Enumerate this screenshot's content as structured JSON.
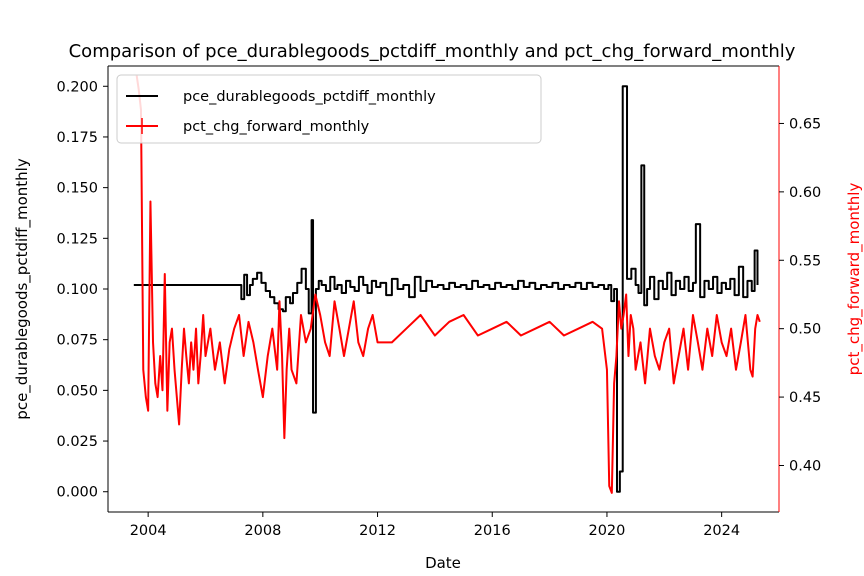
{
  "chart_data": {
    "type": "line",
    "title": "Comparison of pce_durablegoods_pctdiff_monthly and pct_chg_forward_monthly",
    "xlabel": "Date",
    "ylabel_left": "pce_durablegoods_pctdiff_monthly",
    "ylabel_right": "pct_chg_forward_monthly",
    "xlim": [
      2002.6,
      2026.0
    ],
    "ylim_left": [
      -0.01,
      0.21
    ],
    "ylim_right": [
      0.366,
      0.692
    ],
    "x_ticks": [
      2004,
      2008,
      2012,
      2016,
      2020,
      2024
    ],
    "x_tick_labels": [
      "2004",
      "2008",
      "2012",
      "2016",
      "2020",
      "2024"
    ],
    "y_left_ticks": [
      0.0,
      0.025,
      0.05,
      0.075,
      0.1,
      0.125,
      0.15,
      0.175,
      0.2
    ],
    "y_left_tick_labels": [
      "0.000",
      "0.025",
      "0.050",
      "0.075",
      "0.100",
      "0.125",
      "0.150",
      "0.175",
      "0.200"
    ],
    "y_right_ticks": [
      0.4,
      0.45,
      0.5,
      0.55,
      0.6,
      0.65
    ],
    "y_right_tick_labels": [
      "0.40",
      "0.45",
      "0.50",
      "0.55",
      "0.60",
      "0.65"
    ],
    "grid": false,
    "legend_position": "top-left",
    "series": [
      {
        "name": "pce_durablegoods_pctdiff_monthly",
        "axis": "left",
        "color": "#000000",
        "step": true,
        "x": [
          2003.5,
          2007.2,
          2007.25,
          2007.35,
          2007.45,
          2007.55,
          2007.65,
          2007.8,
          2007.95,
          2008.1,
          2008.25,
          2008.4,
          2008.55,
          2008.7,
          2008.8,
          2008.95,
          2009.05,
          2009.2,
          2009.35,
          2009.5,
          2009.6,
          2009.7,
          2009.75,
          2009.85,
          2009.95,
          2010.05,
          2010.2,
          2010.35,
          2010.5,
          2010.6,
          2010.75,
          2010.9,
          2011.05,
          2011.2,
          2011.35,
          2011.5,
          2011.65,
          2011.8,
          2011.95,
          2012.1,
          2012.3,
          2012.5,
          2012.7,
          2012.9,
          2013.1,
          2013.3,
          2013.5,
          2013.7,
          2013.9,
          2014.1,
          2014.3,
          2014.5,
          2014.7,
          2014.9,
          2015.1,
          2015.3,
          2015.5,
          2015.7,
          2015.9,
          2016.1,
          2016.3,
          2016.5,
          2016.7,
          2016.9,
          2017.1,
          2017.3,
          2017.5,
          2017.7,
          2017.9,
          2018.1,
          2018.3,
          2018.5,
          2018.7,
          2018.9,
          2019.1,
          2019.3,
          2019.5,
          2019.7,
          2019.9,
          2020.05,
          2020.15,
          2020.25,
          2020.35,
          2020.45,
          2020.55,
          2020.7,
          2020.85,
          2021.0,
          2021.1,
          2021.2,
          2021.3,
          2021.4,
          2021.5,
          2021.65,
          2021.8,
          2021.95,
          2022.1,
          2022.25,
          2022.4,
          2022.55,
          2022.7,
          2022.85,
          2023.0,
          2023.1,
          2023.25,
          2023.4,
          2023.55,
          2023.7,
          2023.85,
          2024.0,
          2024.15,
          2024.3,
          2024.45,
          2024.6,
          2024.75,
          2024.9,
          2025.05,
          2025.15,
          2025.25
        ],
        "y": [
          0.102,
          0.102,
          0.095,
          0.107,
          0.097,
          0.102,
          0.105,
          0.108,
          0.103,
          0.099,
          0.096,
          0.093,
          0.09,
          0.089,
          0.096,
          0.093,
          0.098,
          0.103,
          0.11,
          0.1,
          0.088,
          0.134,
          0.039,
          0.1,
          0.104,
          0.102,
          0.099,
          0.106,
          0.1,
          0.102,
          0.098,
          0.104,
          0.101,
          0.099,
          0.106,
          0.102,
          0.098,
          0.104,
          0.101,
          0.103,
          0.097,
          0.105,
          0.1,
          0.102,
          0.096,
          0.106,
          0.099,
          0.104,
          0.101,
          0.102,
          0.1,
          0.103,
          0.101,
          0.102,
          0.1,
          0.104,
          0.101,
          0.102,
          0.1,
          0.103,
          0.101,
          0.102,
          0.1,
          0.104,
          0.101,
          0.103,
          0.1,
          0.102,
          0.101,
          0.103,
          0.1,
          0.102,
          0.101,
          0.103,
          0.1,
          0.103,
          0.101,
          0.102,
          0.1,
          0.102,
          0.094,
          0.1,
          0.0,
          0.01,
          0.2,
          0.105,
          0.11,
          0.102,
          0.098,
          0.161,
          0.092,
          0.1,
          0.106,
          0.095,
          0.104,
          0.1,
          0.108,
          0.097,
          0.104,
          0.1,
          0.106,
          0.099,
          0.103,
          0.132,
          0.096,
          0.104,
          0.1,
          0.106,
          0.098,
          0.103,
          0.1,
          0.105,
          0.097,
          0.111,
          0.096,
          0.104,
          0.099,
          0.119,
          0.102
        ]
      },
      {
        "name": "pct_chg_forward_monthly",
        "axis": "right",
        "color": "#ff0000",
        "step": false,
        "x": [
          2003.6,
          2003.67,
          2003.75,
          2003.83,
          2003.92,
          2004.0,
          2004.08,
          2004.17,
          2004.25,
          2004.33,
          2004.42,
          2004.5,
          2004.58,
          2004.67,
          2004.75,
          2004.83,
          2004.92,
          2005.0,
          2005.08,
          2005.17,
          2005.25,
          2005.33,
          2005.42,
          2005.5,
          2005.58,
          2005.67,
          2005.75,
          2005.83,
          2005.92,
          2006.0,
          2006.17,
          2006.33,
          2006.5,
          2006.67,
          2006.83,
          2007.0,
          2007.17,
          2007.33,
          2007.5,
          2007.67,
          2007.83,
          2008.0,
          2008.17,
          2008.33,
          2008.5,
          2008.58,
          2008.67,
          2008.75,
          2008.83,
          2008.92,
          2009.0,
          2009.17,
          2009.33,
          2009.5,
          2009.67,
          2009.83,
          2010.0,
          2010.17,
          2010.33,
          2010.5,
          2010.67,
          2010.83,
          2011.0,
          2011.17,
          2011.33,
          2011.5,
          2011.67,
          2011.83,
          2012.0,
          2012.5,
          2013.0,
          2013.5,
          2014.0,
          2014.5,
          2015.0,
          2015.5,
          2016.0,
          2016.5,
          2017.0,
          2017.5,
          2018.0,
          2018.5,
          2019.0,
          2019.5,
          2019.83,
          2020.0,
          2020.08,
          2020.17,
          2020.25,
          2020.33,
          2020.42,
          2020.5,
          2020.58,
          2020.67,
          2020.75,
          2020.83,
          2020.92,
          2021.0,
          2021.17,
          2021.33,
          2021.5,
          2021.67,
          2021.83,
          2022.0,
          2022.17,
          2022.33,
          2022.5,
          2022.67,
          2022.83,
          2023.0,
          2023.17,
          2023.33,
          2023.5,
          2023.67,
          2023.83,
          2024.0,
          2024.17,
          2024.33,
          2024.5,
          2024.67,
          2024.83,
          2025.0,
          2025.08,
          2025.17,
          2025.25,
          2025.33
        ],
        "y": [
          0.685,
          0.675,
          0.66,
          0.47,
          0.45,
          0.44,
          0.593,
          0.49,
          0.46,
          0.45,
          0.48,
          0.455,
          0.54,
          0.44,
          0.49,
          0.5,
          0.47,
          0.45,
          0.43,
          0.47,
          0.5,
          0.48,
          0.46,
          0.49,
          0.47,
          0.5,
          0.46,
          0.48,
          0.51,
          0.48,
          0.5,
          0.47,
          0.49,
          0.46,
          0.485,
          0.5,
          0.51,
          0.48,
          0.505,
          0.49,
          0.47,
          0.45,
          0.48,
          0.5,
          0.47,
          0.52,
          0.48,
          0.42,
          0.47,
          0.5,
          0.47,
          0.46,
          0.51,
          0.49,
          0.5,
          0.525,
          0.51,
          0.49,
          0.48,
          0.52,
          0.5,
          0.48,
          0.5,
          0.52,
          0.49,
          0.48,
          0.5,
          0.51,
          0.49,
          0.49,
          0.5,
          0.51,
          0.495,
          0.505,
          0.51,
          0.495,
          0.5,
          0.505,
          0.495,
          0.5,
          0.505,
          0.495,
          0.5,
          0.505,
          0.5,
          0.47,
          0.385,
          0.38,
          0.46,
          0.48,
          0.52,
          0.5,
          0.51,
          0.525,
          0.48,
          0.51,
          0.5,
          0.47,
          0.49,
          0.46,
          0.5,
          0.48,
          0.47,
          0.49,
          0.5,
          0.46,
          0.48,
          0.5,
          0.47,
          0.51,
          0.49,
          0.47,
          0.5,
          0.48,
          0.51,
          0.49,
          0.48,
          0.5,
          0.47,
          0.49,
          0.51,
          0.47,
          0.465,
          0.5,
          0.51,
          0.505
        ]
      }
    ]
  }
}
